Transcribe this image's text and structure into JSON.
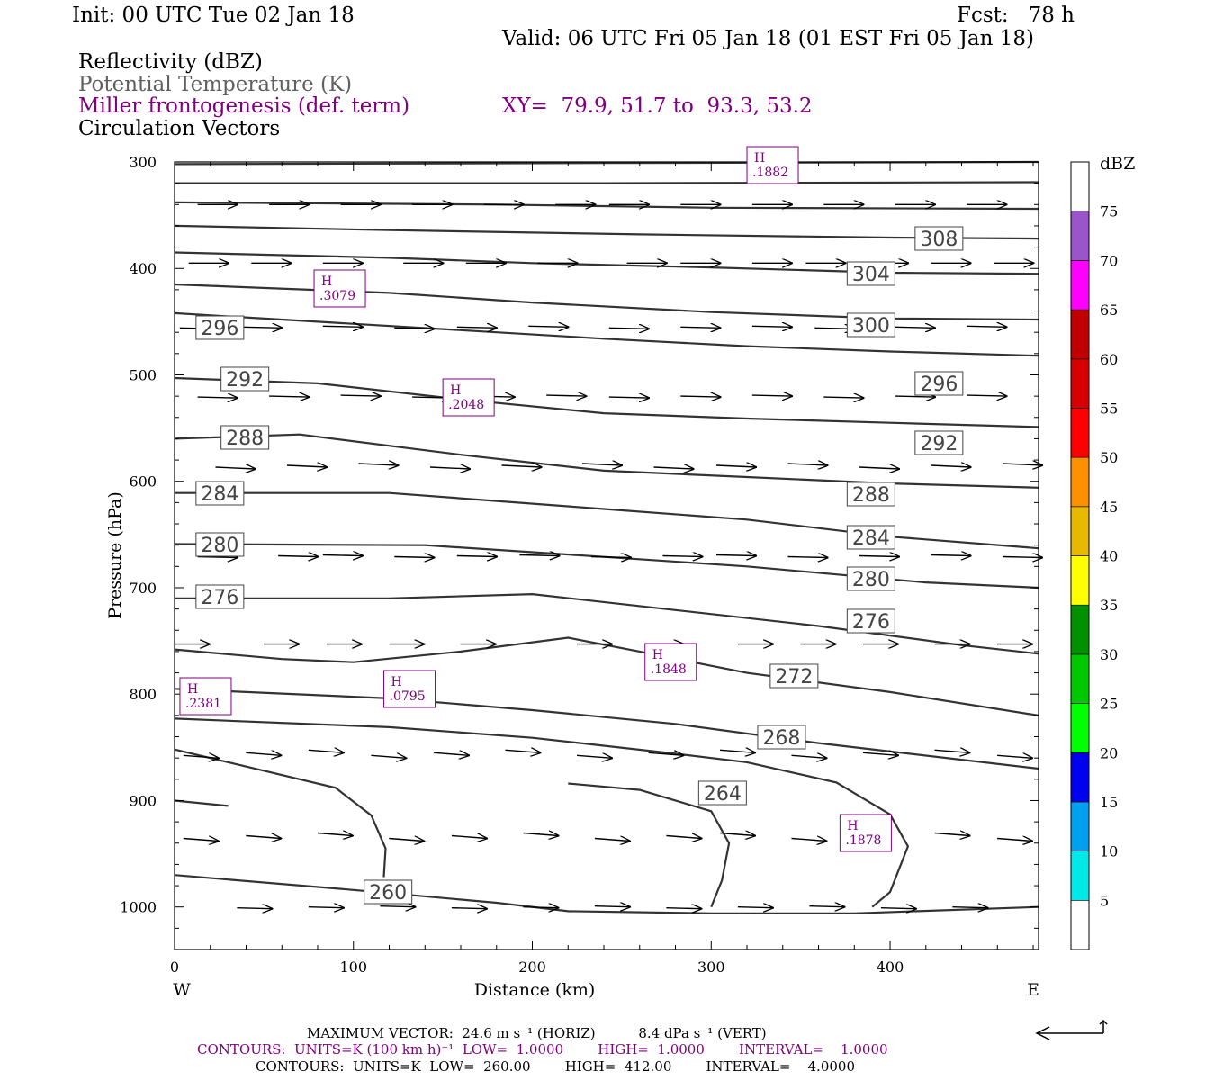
{
  "header": {
    "init": "Init: 00 UTC Tue 02 Jan 18",
    "fcst": "Fcst:   78 h",
    "valid": "Valid: 06 UTC Fri 05 Jan 18 (01 EST Fri 05 Jan 18)",
    "field1": "Reflectivity (dBZ)",
    "field2": "Potential Temperature (K)",
    "field3": "Miller frontogenesis (def. term)",
    "xy": "XY=  79.9, 51.7 to  93.3, 53.2",
    "field4": "Circulation Vectors"
  },
  "colors": {
    "purple": "#800080",
    "contour": "#333333"
  },
  "chart_data": {
    "type": "contour-cross-section",
    "xlabel": "Distance (km)",
    "ylabel": "Pressure (hPa)",
    "xlim": [
      0,
      483
    ],
    "ylim": [
      1040,
      300
    ],
    "x_ticks": [
      "0",
      "100",
      "200",
      "300",
      "400"
    ],
    "y_ticks": [
      "300",
      "400",
      "500",
      "600",
      "700",
      "800",
      "900",
      "1000"
    ],
    "x_end_labels": {
      "left": "W",
      "right": "E"
    },
    "colorbar": {
      "unit": "dBZ",
      "levels": [
        "5",
        "10",
        "15",
        "20",
        "25",
        "30",
        "35",
        "40",
        "45",
        "50",
        "55",
        "60",
        "65",
        "70",
        "75"
      ],
      "colors": [
        "#ffffff",
        "#00e8e8",
        "#00a0f0",
        "#0000f0",
        "#00ff00",
        "#00c800",
        "#009000",
        "#ffff00",
        "#e6b800",
        "#ff9000",
        "#ff0000",
        "#d60000",
        "#c00000",
        "#ff00ff",
        "#9955c9",
        "#ffffff"
      ]
    },
    "theta_labels": [
      "308",
      "304",
      "300",
      "296",
      "296",
      "292",
      "292",
      "288",
      "288",
      "284",
      "284",
      "280",
      "280",
      "276",
      "276",
      "272",
      "268",
      "264",
      "260"
    ],
    "frontogenesis_highs": [
      {
        "mark": "H",
        "value": ".1882"
      },
      {
        "mark": "H",
        "value": ".3079"
      },
      {
        "mark": "H",
        "value": ".2048"
      },
      {
        "mark": "H",
        "value": ".1848"
      },
      {
        "mark": "H",
        "value": ".2381"
      },
      {
        "mark": "H",
        "value": ".0795"
      },
      {
        "mark": "H",
        "value": ".1878"
      }
    ]
  },
  "footer": {
    "max_vector": "MAXIMUM VECTOR:  24.6 m s⁻¹ (HORIZ)          8.4 dPa s⁻¹ (VERT)",
    "contours1": "CONTOURS:  UNITS=K (100 km h)⁻¹  LOW=  1.0000        HIGH=  1.0000        INTERVAL=    1.0000",
    "contours2": "CONTOURS:  UNITS=K  LOW=  260.00        HIGH=  412.00        INTERVAL=    4.0000"
  }
}
